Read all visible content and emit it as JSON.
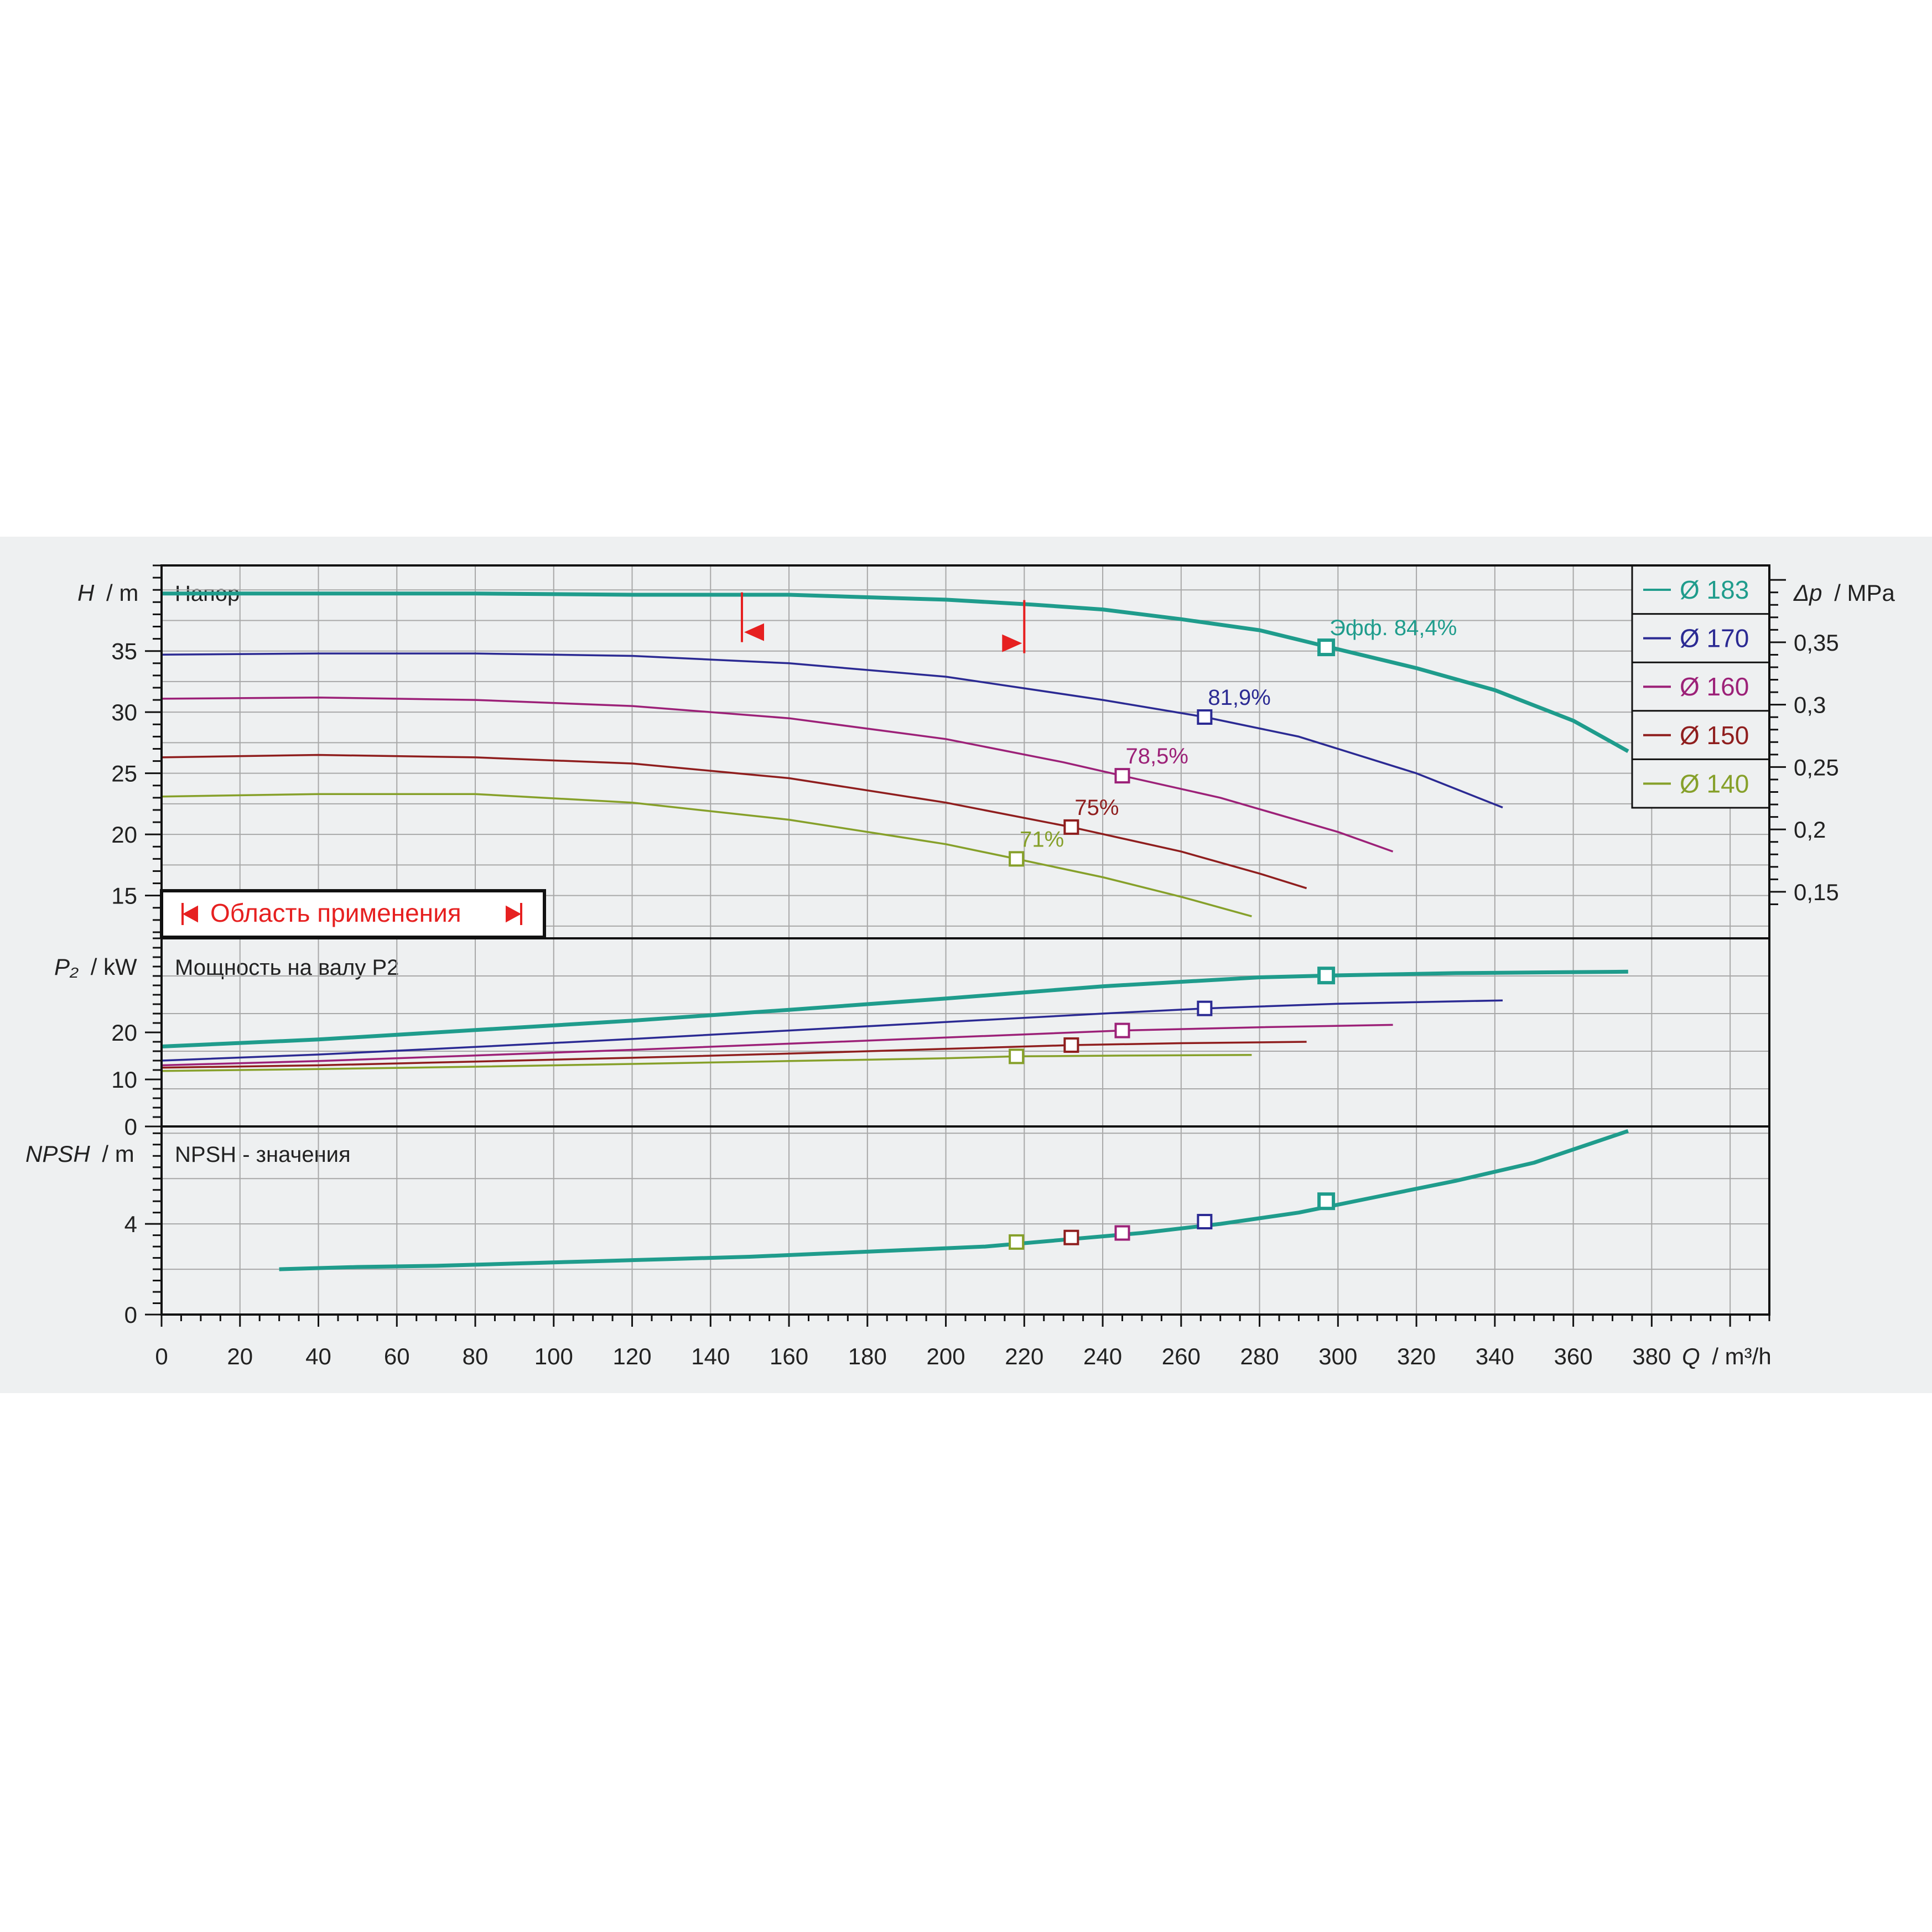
{
  "colors": {
    "d183": "#1f9c8c",
    "d170": "#2b2a93",
    "d160": "#9c2178",
    "d150": "#8f1e1e",
    "d140": "#86a02a",
    "range": "#e62020",
    "grid": "#a8a8a8",
    "background": "#eef0f1"
  },
  "chart_data": [
    {
      "type": "line",
      "title": "Напор",
      "ylabel_italic": "H",
      "ylabel_unit": "/ m",
      "y2label_italic": "Δp",
      "y2label_unit": "/ MPa",
      "xlim": [
        0,
        410
      ],
      "ylim": [
        11.5,
        42
      ],
      "yticks": [
        15,
        20,
        25,
        30,
        35
      ],
      "yticklabels": [
        "15",
        "20",
        "25",
        "30",
        "35"
      ],
      "y2ticks": [
        0.15,
        0.2,
        0.25,
        0.3,
        0.35
      ],
      "y2ticklabels": [
        "0,15",
        "0,2",
        "0,25",
        "0,3",
        "0,35"
      ],
      "grid": true,
      "legend": {
        "position": "top-right",
        "entries": [
          "Ø 183",
          "Ø 170",
          "Ø 160",
          "Ø 150",
          "Ø 140"
        ]
      },
      "range_box_label": "Область применения",
      "series": [
        {
          "key": "d183",
          "x": [
            0,
            40,
            80,
            120,
            148,
            160,
            180,
            200,
            222,
            240,
            260,
            280,
            298,
            320,
            340,
            360,
            374
          ],
          "y": [
            39.7,
            39.7,
            39.7,
            39.6,
            39.6,
            39.6,
            39.4,
            39.2,
            38.8,
            38.4,
            37.6,
            36.7,
            35.3,
            33.6,
            31.8,
            29.3,
            26.8
          ]
        },
        {
          "key": "d170",
          "x": [
            0,
            40,
            80,
            120,
            160,
            200,
            240,
            266,
            290,
            320,
            342
          ],
          "y": [
            34.7,
            34.8,
            34.8,
            34.6,
            34.0,
            32.9,
            31.0,
            29.6,
            28.0,
            25.0,
            22.2
          ]
        },
        {
          "key": "d160",
          "x": [
            0,
            40,
            80,
            120,
            160,
            200,
            230,
            245,
            270,
            300,
            314
          ],
          "y": [
            31.1,
            31.2,
            31.0,
            30.5,
            29.5,
            27.8,
            25.9,
            24.8,
            23.0,
            20.2,
            18.6
          ]
        },
        {
          "key": "d150",
          "x": [
            0,
            40,
            80,
            120,
            160,
            200,
            232,
            260,
            280,
            292
          ],
          "y": [
            26.3,
            26.5,
            26.3,
            25.8,
            24.6,
            22.6,
            20.6,
            18.6,
            16.8,
            15.6
          ]
        },
        {
          "key": "d140",
          "x": [
            0,
            40,
            80,
            120,
            160,
            200,
            218,
            240,
            260,
            278
          ],
          "y": [
            23.1,
            23.3,
            23.3,
            22.6,
            21.2,
            19.2,
            18.0,
            16.5,
            14.9,
            13.3
          ]
        }
      ],
      "markers": [
        {
          "key": "d183",
          "x": 297,
          "y": 35.3,
          "label": "Эфф.  84,4%"
        },
        {
          "key": "d170",
          "x": 266,
          "y": 29.6,
          "label": "81,9%"
        },
        {
          "key": "d160",
          "x": 245,
          "y": 24.8,
          "label": "78,5%"
        },
        {
          "key": "d150",
          "x": 232,
          "y": 20.6,
          "label": "75%"
        },
        {
          "key": "d140",
          "x": 218,
          "y": 18.0,
          "label": "71%"
        }
      ],
      "operating_range": {
        "q_min": 148,
        "q_max": 220
      }
    },
    {
      "type": "line",
      "title": "Мощность на валу P2",
      "ylabel_italic": "P₂",
      "ylabel_unit": "/ kW",
      "xlim": [
        0,
        410
      ],
      "ylim": [
        0,
        40
      ],
      "yticks": [
        0,
        10,
        20
      ],
      "yticklabels": [
        "0",
        "10",
        "20"
      ],
      "grid": true,
      "series": [
        {
          "key": "d183",
          "x": [
            0,
            40,
            80,
            120,
            160,
            200,
            240,
            280,
            298,
            330,
            374
          ],
          "y": [
            17.0,
            18.5,
            20.5,
            22.5,
            24.8,
            27.2,
            29.8,
            31.7,
            32.1,
            32.6,
            32.9
          ]
        },
        {
          "key": "d170",
          "x": [
            0,
            40,
            80,
            120,
            160,
            200,
            240,
            266,
            300,
            342
          ],
          "y": [
            14.0,
            15.3,
            16.9,
            18.6,
            20.4,
            22.2,
            24.0,
            25.1,
            26.1,
            26.8
          ]
        },
        {
          "key": "d160",
          "x": [
            0,
            40,
            80,
            120,
            160,
            200,
            245,
            280,
            314
          ],
          "y": [
            13.0,
            13.9,
            15.1,
            16.3,
            17.6,
            18.9,
            20.4,
            21.1,
            21.6
          ]
        },
        {
          "key": "d150",
          "x": [
            0,
            40,
            80,
            120,
            160,
            200,
            232,
            260,
            292
          ],
          "y": [
            12.5,
            13.0,
            13.8,
            14.6,
            15.5,
            16.5,
            17.3,
            17.7,
            18.0
          ]
        },
        {
          "key": "d140",
          "x": [
            0,
            40,
            80,
            120,
            160,
            200,
            218,
            250,
            278
          ],
          "y": [
            11.8,
            12.2,
            12.7,
            13.3,
            13.9,
            14.5,
            14.9,
            15.1,
            15.2
          ]
        }
      ],
      "markers": [
        {
          "key": "d183",
          "x": 297,
          "y": 32.1
        },
        {
          "key": "d170",
          "x": 266,
          "y": 25.1
        },
        {
          "key": "d160",
          "x": 245,
          "y": 20.4
        },
        {
          "key": "d150",
          "x": 232,
          "y": 17.3
        },
        {
          "key": "d140",
          "x": 218,
          "y": 14.9
        }
      ]
    },
    {
      "type": "line",
      "title": "NPSH - значения",
      "ylabel_italic": "NPSH",
      "ylabel_unit": "/ m",
      "xlabel_italic": "Q",
      "xlabel_unit": "/ m³/h",
      "xlim": [
        0,
        410
      ],
      "ylim": [
        0,
        8.3
      ],
      "yticks": [
        0,
        4
      ],
      "yticklabels": [
        "0",
        "4"
      ],
      "xticks": [
        0,
        20,
        40,
        60,
        80,
        100,
        120,
        140,
        160,
        180,
        200,
        220,
        240,
        260,
        280,
        300,
        320,
        340,
        360,
        380
      ],
      "xticklabels": [
        "0",
        "20",
        "40",
        "60",
        "80",
        "100",
        "120",
        "140",
        "160",
        "180",
        "200",
        "220",
        "240",
        "260",
        "280",
        "300",
        "320",
        "340",
        "360",
        "380"
      ],
      "grid": true,
      "series": [
        {
          "key": "d183",
          "x": [
            30,
            50,
            70,
            90,
            110,
            130,
            150,
            170,
            190,
            210,
            230,
            250,
            270,
            290,
            310,
            330,
            350,
            374
          ],
          "y": [
            2.0,
            2.1,
            2.15,
            2.25,
            2.35,
            2.45,
            2.55,
            2.7,
            2.85,
            3.0,
            3.3,
            3.6,
            4.0,
            4.5,
            5.2,
            5.9,
            6.7,
            8.1
          ]
        }
      ],
      "markers": [
        {
          "key": "d183",
          "x": 297,
          "y": 5.0
        },
        {
          "key": "d170",
          "x": 266,
          "y": 4.1
        },
        {
          "key": "d160",
          "x": 245,
          "y": 3.6
        },
        {
          "key": "d150",
          "x": 232,
          "y": 3.4
        },
        {
          "key": "d140",
          "x": 218,
          "y": 3.2
        }
      ]
    }
  ]
}
